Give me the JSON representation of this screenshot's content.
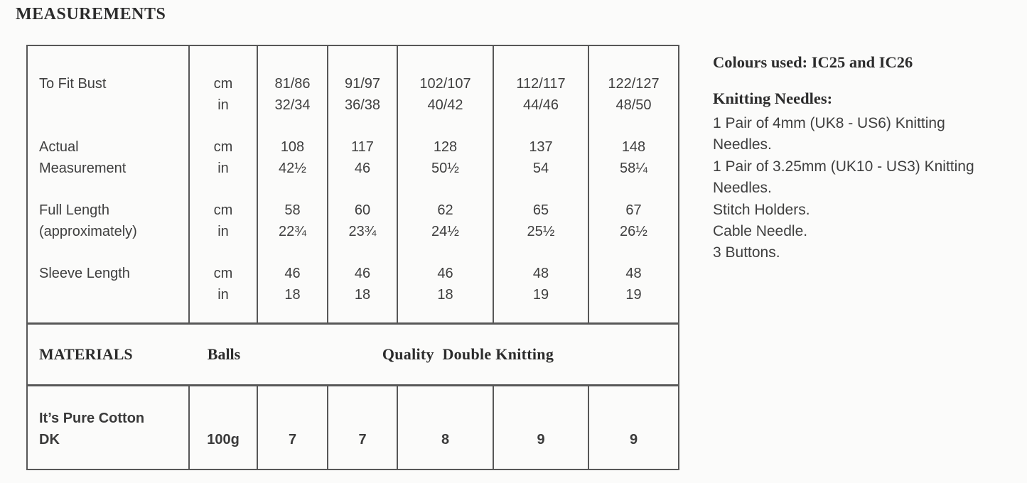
{
  "page": {
    "title": "MEASUREMENTS"
  },
  "measurement_table": {
    "rows": [
      {
        "label_lines": [
          "To Fit Bust",
          ""
        ],
        "units": [
          "cm",
          "in"
        ],
        "values": [
          [
            "81/86",
            "32/34"
          ],
          [
            "91/97",
            "36/38"
          ],
          [
            "102/107",
            "40/42"
          ],
          [
            "112/117",
            "44/46"
          ],
          [
            "122/127",
            "48/50"
          ]
        ]
      },
      {
        "label_lines": [
          "Actual",
          "Measurement"
        ],
        "units": [
          "cm",
          "in"
        ],
        "values": [
          [
            "108",
            "42½"
          ],
          [
            "117",
            "46"
          ],
          [
            "128",
            "50½"
          ],
          [
            "137",
            "54"
          ],
          [
            "148",
            "58¼"
          ]
        ]
      },
      {
        "label_lines": [
          "Full Length",
          "(approximately)"
        ],
        "units": [
          "cm",
          "in"
        ],
        "values": [
          [
            "58",
            "22¾"
          ],
          [
            "60",
            "23¾"
          ],
          [
            "62",
            "24½"
          ],
          [
            "65",
            "25½"
          ],
          [
            "67",
            "26½"
          ]
        ]
      },
      {
        "label_lines": [
          "Sleeve Length",
          ""
        ],
        "units": [
          "cm",
          "in"
        ],
        "values": [
          [
            "46",
            "18"
          ],
          [
            "46",
            "18"
          ],
          [
            "46",
            "18"
          ],
          [
            "48",
            "19"
          ],
          [
            "48",
            "19"
          ]
        ]
      }
    ]
  },
  "materials_band": {
    "title": "MATERIALS",
    "balls_label": "Balls",
    "quality_label": "Quality  Double Knitting"
  },
  "yarn_row": {
    "label_lines": [
      "It’s Pure Cotton",
      "DK"
    ],
    "weight": "100g",
    "balls": [
      "7",
      "7",
      "8",
      "9",
      "9"
    ]
  },
  "side_panel": {
    "colours_line": "Colours used: IC25 and IC26",
    "needles_heading": "Knitting Needles:",
    "items": [
      "1 Pair of 4mm (UK8 - US6) Knitting",
      "Needles.",
      "1 Pair of 3.25mm (UK10 - US3) Knitting",
      "Needles.",
      "Stitch Holders.",
      "Cable Needle.",
      "3 Buttons."
    ]
  },
  "colors": {
    "background": "#fbfbfa",
    "text": "#3f3f3f",
    "heading": "#2c2c2c",
    "border": "#575757"
  }
}
